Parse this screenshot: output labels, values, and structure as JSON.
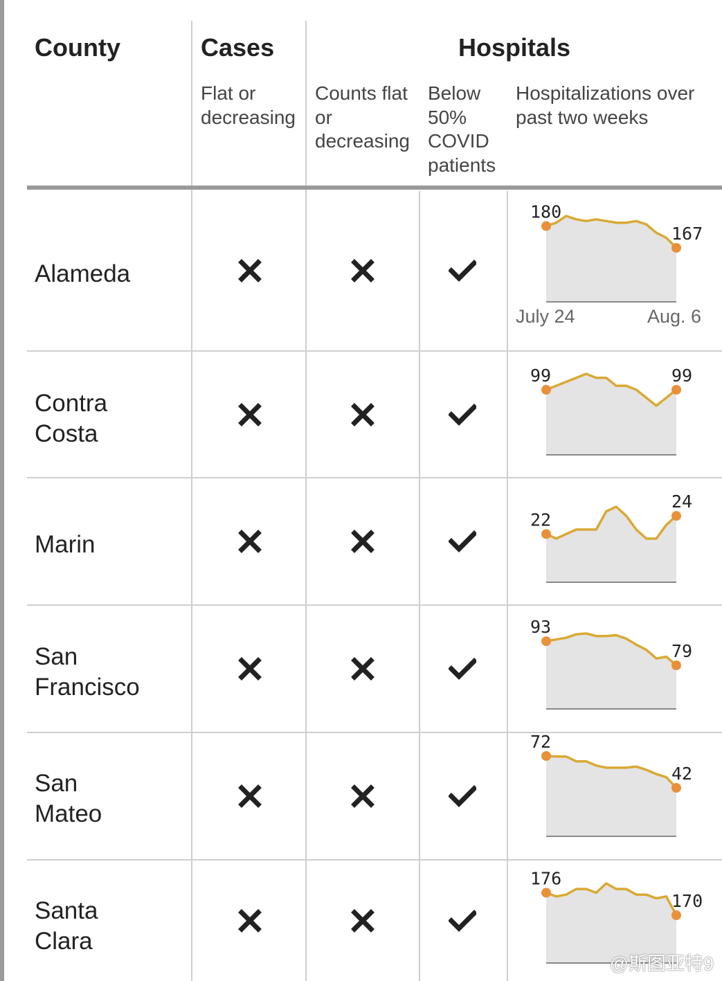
{
  "header": {
    "county": "County",
    "cases": "Cases",
    "hospitals": "Hospitals",
    "cases_sub": [
      "Flat or",
      "decreasing"
    ],
    "counts_sub": [
      "Counts flat",
      "or",
      "decreasing"
    ],
    "below_sub": [
      "Below",
      "50%",
      "COVID",
      "patients"
    ],
    "hosp_sub": [
      "Hospitalizations over",
      "past two weeks"
    ]
  },
  "axis": {
    "start": "July 24",
    "end": "Aug. 6"
  },
  "icons": {
    "no": "x-icon",
    "yes": "check-icon"
  },
  "colors": {
    "line": "#d9a934",
    "dot": "#e8913a",
    "area": "#e4e4e4"
  },
  "watermark": "@斯图亚特9",
  "chart_data": {
    "type": "table",
    "columns": [
      "County",
      "Cases: Flat or decreasing",
      "Hospitals: Counts flat or decreasing",
      "Hospitals: Below 50% COVID patients",
      "Hospitalizations over past two weeks"
    ],
    "rows": [
      {
        "county": [
          "Alameda"
        ],
        "cases_flat": false,
        "counts_flat": false,
        "below_50": true,
        "start_label": "180",
        "end_label": "167",
        "series": [
          180,
          182,
          186,
          184,
          183,
          184,
          183,
          182,
          182,
          183,
          181,
          176,
          173,
          167
        ]
      },
      {
        "county": [
          "Contra",
          "Costa"
        ],
        "cases_flat": false,
        "counts_flat": false,
        "below_50": true,
        "start_label": "99",
        "end_label": "99",
        "series": [
          99,
          100,
          101,
          102,
          103,
          102,
          102,
          100,
          100,
          99,
          97,
          95,
          97,
          99
        ]
      },
      {
        "county": [
          "Marin"
        ],
        "cases_flat": false,
        "counts_flat": false,
        "below_50": true,
        "start_label": "22",
        "end_label": "24",
        "series": [
          22,
          21.5,
          22,
          22.5,
          22.5,
          22.5,
          24.5,
          25,
          24,
          22.5,
          21.5,
          21.5,
          23,
          24
        ]
      },
      {
        "county": [
          "San",
          "Francisco"
        ],
        "cases_flat": false,
        "counts_flat": false,
        "below_50": true,
        "start_label": "93",
        "end_label": "79",
        "series": [
          93,
          94,
          95,
          97,
          97.5,
          96,
          96,
          96.5,
          94.5,
          91,
          88,
          83,
          84,
          79
        ]
      },
      {
        "county": [
          "San",
          "Mateo"
        ],
        "cases_flat": false,
        "counts_flat": false,
        "below_50": true,
        "start_label": "72",
        "end_label": "42",
        "series": [
          72,
          71.5,
          71.5,
          67,
          67,
          63,
          61,
          61,
          61,
          62,
          59,
          55,
          52,
          42
        ]
      },
      {
        "county": [
          "Santa",
          "Clara"
        ],
        "cases_flat": false,
        "counts_flat": false,
        "below_50": true,
        "start_label": "176",
        "end_label": "170",
        "series": [
          176,
          175,
          175.5,
          177,
          177,
          176,
          178.5,
          177,
          177,
          175.5,
          175.5,
          174.5,
          175,
          170
        ]
      }
    ]
  }
}
